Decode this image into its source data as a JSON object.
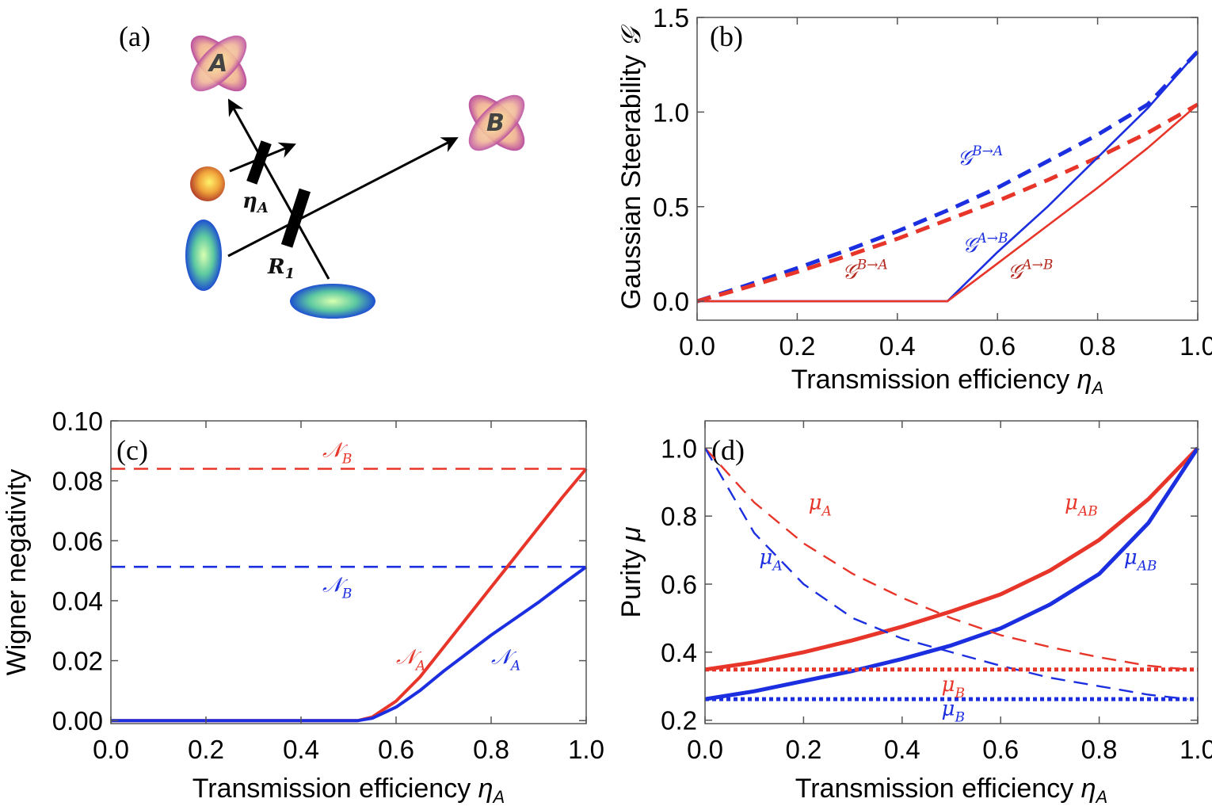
{
  "panel_labels": {
    "a": "(a)",
    "b": "(b)",
    "c": "(c)",
    "d": "(d)"
  },
  "schematic": {
    "mode_a": "A",
    "mode_b": "B",
    "eta_label": "η",
    "eta_sub": "A",
    "r_label": "R",
    "r_sub": "1"
  },
  "colors": {
    "red": "#e8352a",
    "blue": "#1c2fe0",
    "dark_red": "#b5281f"
  },
  "chart_data": [
    {
      "id": "b",
      "type": "line",
      "xlabel": "Transmission efficiency",
      "xlabel_sym": "η",
      "xlabel_sub": "A",
      "ylabel": "Gaussian Steerability",
      "ylabel_sym": "𝒢",
      "xlim": [
        0,
        1
      ],
      "ylim": [
        -0.1,
        1.5
      ],
      "xticks": [
        "0.0",
        "0.2",
        "0.4",
        "0.6",
        "0.8",
        "1.0"
      ],
      "yticks": [
        "0.0",
        "0.5",
        "1.0",
        "1.5"
      ],
      "series": [
        {
          "name": "G B→A (blue dashed)",
          "color": "blue",
          "style": "dashed",
          "x": [
            0,
            0.1,
            0.2,
            0.3,
            0.4,
            0.5,
            0.6,
            0.7,
            0.8,
            0.9,
            1.0
          ],
          "y": [
            0,
            0.085,
            0.175,
            0.27,
            0.37,
            0.48,
            0.6,
            0.74,
            0.88,
            1.04,
            1.32
          ]
        },
        {
          "name": "G B→A (red dashed)",
          "color": "red",
          "style": "dashed",
          "x": [
            0,
            0.1,
            0.2,
            0.3,
            0.4,
            0.5,
            0.6,
            0.7,
            0.8,
            0.9,
            1.0
          ],
          "y": [
            0,
            0.075,
            0.155,
            0.24,
            0.33,
            0.43,
            0.53,
            0.64,
            0.76,
            0.89,
            1.04
          ]
        },
        {
          "name": "G A→B (blue solid)",
          "color": "blue",
          "style": "solid",
          "x": [
            0,
            0.5,
            0.6,
            0.7,
            0.8,
            0.9,
            1.0
          ],
          "y": [
            0,
            0,
            0.26,
            0.5,
            0.76,
            1.02,
            1.32
          ]
        },
        {
          "name": "G A→B (red solid)",
          "color": "red",
          "style": "solid",
          "x": [
            0,
            0.5,
            0.6,
            0.7,
            0.8,
            0.9,
            1.0
          ],
          "y": [
            0,
            0,
            0.2,
            0.4,
            0.6,
            0.81,
            1.04
          ]
        }
      ],
      "annotations": [
        {
          "base": "𝒢",
          "sup": "B→A",
          "color": "blue",
          "x": 0.52,
          "y": 0.72
        },
        {
          "base": "𝒢",
          "sup": "A→B",
          "color": "blue",
          "x": 0.53,
          "y": 0.26
        },
        {
          "base": "𝒢",
          "sup": "B→A",
          "color": "dark_red",
          "x": 0.29,
          "y": 0.12
        },
        {
          "base": "𝒢",
          "sup": "A→B",
          "color": "dark_red",
          "x": 0.62,
          "y": 0.12
        }
      ]
    },
    {
      "id": "c",
      "type": "line",
      "xlabel": "Transmission efficiency",
      "xlabel_sym": "η",
      "xlabel_sub": "A",
      "ylabel": "Wigner negativity",
      "xlim": [
        0,
        1
      ],
      "ylim": [
        -0.001,
        0.1
      ],
      "xticks": [
        "0.0",
        "0.2",
        "0.4",
        "0.6",
        "0.8",
        "1.0"
      ],
      "yticks": [
        "0.00",
        "0.02",
        "0.04",
        "0.06",
        "0.08",
        "0.10"
      ],
      "series": [
        {
          "name": "N_B (red dashed)",
          "color": "red",
          "style": "dashed",
          "x": [
            0,
            1
          ],
          "y": [
            0.084,
            0.084
          ]
        },
        {
          "name": "N_B (blue dashed)",
          "color": "blue",
          "style": "dashed",
          "x": [
            0,
            1
          ],
          "y": [
            0.0513,
            0.0513
          ]
        },
        {
          "name": "N_A (red solid)",
          "color": "red",
          "style": "solid",
          "x": [
            0,
            0.52,
            0.55,
            0.6,
            0.65,
            0.7,
            0.75,
            0.8,
            0.85,
            0.9,
            0.95,
            1.0
          ],
          "y": [
            0,
            0,
            0.0012,
            0.0065,
            0.0145,
            0.0245,
            0.0345,
            0.0445,
            0.0545,
            0.0645,
            0.0745,
            0.084
          ]
        },
        {
          "name": "N_A (blue solid)",
          "color": "blue",
          "style": "solid",
          "x": [
            0,
            0.52,
            0.55,
            0.6,
            0.65,
            0.7,
            0.75,
            0.8,
            0.85,
            0.9,
            0.95,
            1.0
          ],
          "y": [
            0,
            0,
            0.0008,
            0.0045,
            0.01,
            0.0165,
            0.0225,
            0.0285,
            0.034,
            0.0395,
            0.0455,
            0.0513
          ]
        }
      ],
      "annotations": [
        {
          "base": "𝒩",
          "sub": "B",
          "color": "red",
          "x": 0.445,
          "y": 0.088
        },
        {
          "base": "𝒩",
          "sub": "B",
          "color": "blue",
          "x": 0.445,
          "y": 0.043
        },
        {
          "base": "𝒩",
          "sub": "A",
          "color": "red",
          "x": 0.6,
          "y": 0.019
        },
        {
          "base": "𝒩",
          "sub": "A",
          "color": "blue",
          "x": 0.8,
          "y": 0.019
        }
      ]
    },
    {
      "id": "d",
      "type": "line",
      "xlabel": "Transmission efficiency",
      "xlabel_sym": "η",
      "xlabel_sub": "A",
      "ylabel": "Purity",
      "ylabel_sym": "μ",
      "xlim": [
        0,
        1
      ],
      "ylim": [
        0.19,
        1.08
      ],
      "xticks": [
        "0.0",
        "0.2",
        "0.4",
        "0.6",
        "0.8",
        "1.0"
      ],
      "yticks": [
        "0.2",
        "0.4",
        "0.6",
        "0.8",
        "1.0"
      ],
      "series": [
        {
          "name": "μ_AB (red solid)",
          "color": "red",
          "style": "solid",
          "x": [
            0,
            0.1,
            0.2,
            0.3,
            0.4,
            0.5,
            0.6,
            0.7,
            0.8,
            0.9,
            1.0
          ],
          "y": [
            0.349,
            0.37,
            0.4,
            0.435,
            0.475,
            0.52,
            0.57,
            0.64,
            0.73,
            0.85,
            1.0
          ]
        },
        {
          "name": "μ_AB (blue solid)",
          "color": "blue",
          "style": "solid",
          "x": [
            0,
            0.1,
            0.2,
            0.3,
            0.4,
            0.5,
            0.6,
            0.7,
            0.8,
            0.9,
            1.0
          ],
          "y": [
            0.262,
            0.285,
            0.315,
            0.345,
            0.38,
            0.42,
            0.47,
            0.54,
            0.63,
            0.78,
            1.0
          ]
        },
        {
          "name": "μ_A (red dashed)",
          "color": "red",
          "style": "dashed",
          "x": [
            0,
            0.1,
            0.2,
            0.3,
            0.4,
            0.5,
            0.6,
            0.7,
            0.8,
            0.9,
            0.98
          ],
          "y": [
            1.0,
            0.84,
            0.72,
            0.63,
            0.56,
            0.5,
            0.45,
            0.415,
            0.385,
            0.36,
            0.349
          ]
        },
        {
          "name": "μ_A (blue dashed)",
          "color": "blue",
          "style": "dashed",
          "x": [
            0,
            0.1,
            0.2,
            0.3,
            0.4,
            0.5,
            0.6,
            0.7,
            0.8,
            0.9,
            0.98
          ],
          "y": [
            1.0,
            0.75,
            0.6,
            0.5,
            0.44,
            0.4,
            0.36,
            0.325,
            0.3,
            0.275,
            0.262
          ]
        },
        {
          "name": "μ_B (red dotted)",
          "color": "red",
          "style": "dotted",
          "x": [
            0,
            1
          ],
          "y": [
            0.349,
            0.349
          ]
        },
        {
          "name": "μ_B (blue dotted)",
          "color": "blue",
          "style": "dotted",
          "x": [
            0,
            1
          ],
          "y": [
            0.262,
            0.262
          ]
        }
      ],
      "annotations": [
        {
          "base": "μ",
          "sub": "A",
          "color": "red",
          "x": 0.21,
          "y": 0.82
        },
        {
          "base": "μ",
          "sub": "A",
          "color": "blue",
          "x": 0.11,
          "y": 0.66
        },
        {
          "base": "μ",
          "sub": "AB",
          "color": "red",
          "x": 0.73,
          "y": 0.82
        },
        {
          "base": "μ",
          "sub": "AB",
          "color": "blue",
          "x": 0.85,
          "y": 0.66
        },
        {
          "base": "μ",
          "sub": "B",
          "color": "red",
          "x": 0.48,
          "y": 0.285
        },
        {
          "base": "μ",
          "sub": "B",
          "color": "blue",
          "x": 0.48,
          "y": 0.215
        }
      ]
    }
  ]
}
